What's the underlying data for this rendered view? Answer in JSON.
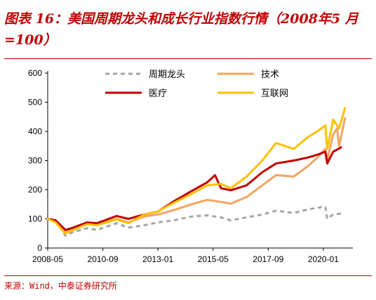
{
  "title": "图表 16：美国周期龙头和成长行业指数行情（2008年5 月=100）",
  "source": "来源：Wind，中泰证券研究所",
  "colors": {
    "accent": "#c00000",
    "cyclical": "#a6a6a6",
    "tech": "#f4a460",
    "medical": "#c00000",
    "internet": "#ffc000"
  },
  "chart_data": {
    "type": "line",
    "title": "",
    "xlabel": "",
    "ylabel": "",
    "ylim": [
      0,
      600
    ],
    "yticks": [
      0,
      100,
      200,
      300,
      400,
      500,
      600
    ],
    "xlim": [
      "2008-05",
      "2021-04"
    ],
    "xticks": [
      "2008-05",
      "2010-09",
      "2013-01",
      "2015-05",
      "2017-09",
      "2020-01"
    ],
    "grid": false,
    "legend_position": "top",
    "series": [
      {
        "name": "周期龙头",
        "color_key": "cyclical",
        "style": "dashed",
        "points": [
          [
            "2008-05",
            100
          ],
          [
            "2008-09",
            95
          ],
          [
            "2009-02",
            42
          ],
          [
            "2009-06",
            55
          ],
          [
            "2010-01",
            68
          ],
          [
            "2010-06",
            62
          ],
          [
            "2011-04",
            85
          ],
          [
            "2011-10",
            70
          ],
          [
            "2012-06",
            78
          ],
          [
            "2013-01",
            88
          ],
          [
            "2013-09",
            95
          ],
          [
            "2014-06",
            108
          ],
          [
            "2015-02",
            112
          ],
          [
            "2015-09",
            105
          ],
          [
            "2016-02",
            95
          ],
          [
            "2016-10",
            105
          ],
          [
            "2017-06",
            115
          ],
          [
            "2018-01",
            128
          ],
          [
            "2018-10",
            120
          ],
          [
            "2019-05",
            132
          ],
          [
            "2019-10",
            138
          ],
          [
            "2020-02",
            142
          ],
          [
            "2020-03",
            100
          ],
          [
            "2020-06",
            115
          ],
          [
            "2020-10",
            118
          ]
        ]
      },
      {
        "name": "技术",
        "color_key": "tech",
        "style": "solid",
        "points": [
          [
            "2008-05",
            100
          ],
          [
            "2008-09",
            90
          ],
          [
            "2009-02",
            52
          ],
          [
            "2009-06",
            68
          ],
          [
            "2010-01",
            85
          ],
          [
            "2010-06",
            80
          ],
          [
            "2011-04",
            100
          ],
          [
            "2011-10",
            88
          ],
          [
            "2012-06",
            108
          ],
          [
            "2013-01",
            115
          ],
          [
            "2013-09",
            130
          ],
          [
            "2014-06",
            150
          ],
          [
            "2015-02",
            165
          ],
          [
            "2015-09",
            158
          ],
          [
            "2016-02",
            152
          ],
          [
            "2016-10",
            175
          ],
          [
            "2017-06",
            215
          ],
          [
            "2018-01",
            250
          ],
          [
            "2018-10",
            245
          ],
          [
            "2019-05",
            280
          ],
          [
            "2019-10",
            310
          ],
          [
            "2020-02",
            340
          ],
          [
            "2020-03",
            300
          ],
          [
            "2020-06",
            390
          ],
          [
            "2020-08",
            410
          ],
          [
            "2020-09",
            350
          ],
          [
            "2020-12",
            445
          ]
        ]
      },
      {
        "name": "医疗",
        "color_key": "medical",
        "style": "solid",
        "points": [
          [
            "2008-05",
            100
          ],
          [
            "2008-09",
            95
          ],
          [
            "2009-02",
            62
          ],
          [
            "2009-06",
            70
          ],
          [
            "2010-01",
            88
          ],
          [
            "2010-06",
            85
          ],
          [
            "2011-04",
            110
          ],
          [
            "2011-10",
            100
          ],
          [
            "2012-06",
            115
          ],
          [
            "2013-01",
            125
          ],
          [
            "2013-09",
            160
          ],
          [
            "2014-06",
            195
          ],
          [
            "2015-02",
            225
          ],
          [
            "2015-06",
            250
          ],
          [
            "2015-09",
            205
          ],
          [
            "2016-02",
            198
          ],
          [
            "2016-10",
            215
          ],
          [
            "2017-06",
            260
          ],
          [
            "2018-01",
            290
          ],
          [
            "2018-10",
            300
          ],
          [
            "2019-05",
            310
          ],
          [
            "2019-10",
            320
          ],
          [
            "2020-02",
            330
          ],
          [
            "2020-03",
            290
          ],
          [
            "2020-06",
            330
          ],
          [
            "2020-10",
            345
          ]
        ]
      },
      {
        "name": "互联网",
        "color_key": "internet",
        "style": "solid",
        "points": [
          [
            "2008-05",
            100
          ],
          [
            "2008-09",
            88
          ],
          [
            "2009-02",
            50
          ],
          [
            "2009-06",
            62
          ],
          [
            "2010-01",
            82
          ],
          [
            "2010-06",
            78
          ],
          [
            "2011-04",
            98
          ],
          [
            "2011-10",
            85
          ],
          [
            "2012-06",
            115
          ],
          [
            "2013-01",
            125
          ],
          [
            "2013-09",
            155
          ],
          [
            "2014-06",
            185
          ],
          [
            "2015-02",
            215
          ],
          [
            "2015-09",
            220
          ],
          [
            "2016-02",
            205
          ],
          [
            "2016-10",
            245
          ],
          [
            "2017-06",
            300
          ],
          [
            "2018-01",
            360
          ],
          [
            "2018-10",
            340
          ],
          [
            "2019-05",
            380
          ],
          [
            "2019-10",
            400
          ],
          [
            "2020-02",
            420
          ],
          [
            "2020-03",
            340
          ],
          [
            "2020-06",
            440
          ],
          [
            "2020-09",
            410
          ],
          [
            "2020-12",
            480
          ]
        ]
      }
    ]
  }
}
